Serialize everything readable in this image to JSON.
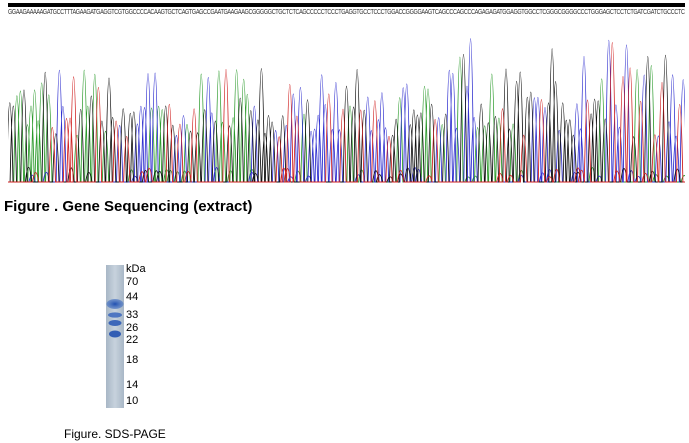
{
  "figure1": {
    "sequence": "GGAAGAAAAAGATGCCTTTAGAAGATGAGGTCGTGGCCCCACAAGTGCTCAGTGAGCCGAATGAAGAAGCGGGGGCTGCTCTCAGCCCCCTCCCTGAGGTGCCTCCCTGGACCGGGGAAGTCAGCCCAGCCCAGAGAGATGGAGGTGGCCTCGGGCGGGGCCCTGGGAGCTCCTCTGATCGATCTGCCCTC",
    "caption": "Figure . Gene Sequencing (extract)"
  },
  "figure2": {
    "unit": "kDa",
    "markers": [
      "70",
      "44",
      "33",
      "26",
      "22",
      "18",
      "14",
      "10"
    ],
    "caption": "Figure. SDS-PAGE"
  },
  "colors": {
    "A": "#2a9a2a",
    "C": "#2f2fcf",
    "G": "#111111",
    "T": "#d02020",
    "gel_band": "#2d5bb5",
    "gel_lane": "#b9c6d4"
  }
}
